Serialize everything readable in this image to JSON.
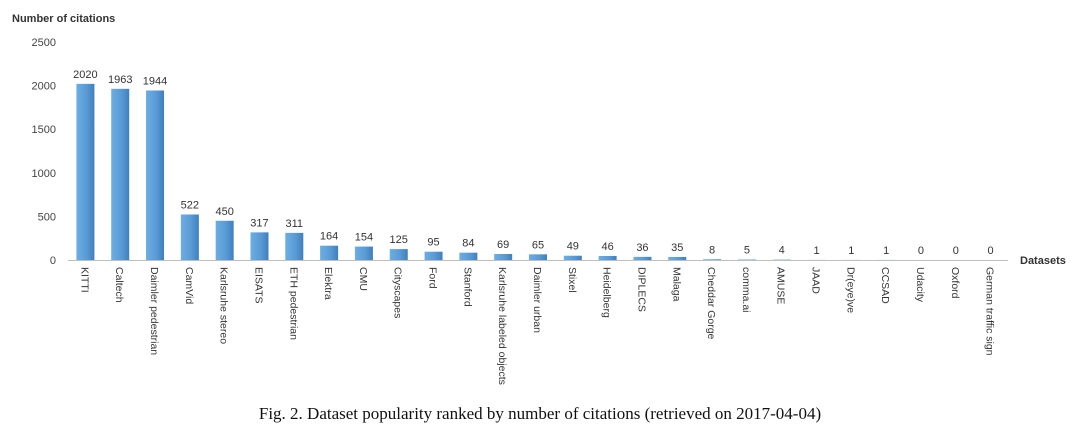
{
  "figure": {
    "caption": "Fig. 2.  Dataset popularity ranked by number of citations (retrieved on 2017-04-04)"
  },
  "chart_data": {
    "type": "bar",
    "ylabel": "Number of citations",
    "xlabel": "Datasets",
    "ylim": [
      0,
      2500
    ],
    "yticks": [
      0,
      500,
      1000,
      1500,
      2000,
      2500
    ],
    "grid": false,
    "bar_color": "#5b9bd5",
    "categories": [
      "KITTI",
      "Caltech",
      "Daimler pedestrian",
      "CamVid",
      "Karlsruhe stereo",
      "EISATS",
      "ETH pedestrian",
      "Elektra",
      "CMU",
      "Cityscapes",
      "Ford",
      "Stanford",
      "Karlsruhe labeled objects",
      "Daimler urban",
      "Stixel",
      "Heidelberg",
      "DIPLECS",
      "Malaga",
      "Cheddar Gorge",
      "comma.ai",
      "AMUSE",
      "JAAD",
      "Dr(eye)ve",
      "CCSAD",
      "Udacity",
      "Oxford",
      "German traffic sign"
    ],
    "values": [
      2020,
      1963,
      1944,
      522,
      450,
      317,
      311,
      164,
      154,
      125,
      95,
      84,
      69,
      65,
      49,
      46,
      36,
      35,
      8,
      5,
      4,
      1,
      1,
      1,
      0,
      0,
      0
    ]
  }
}
